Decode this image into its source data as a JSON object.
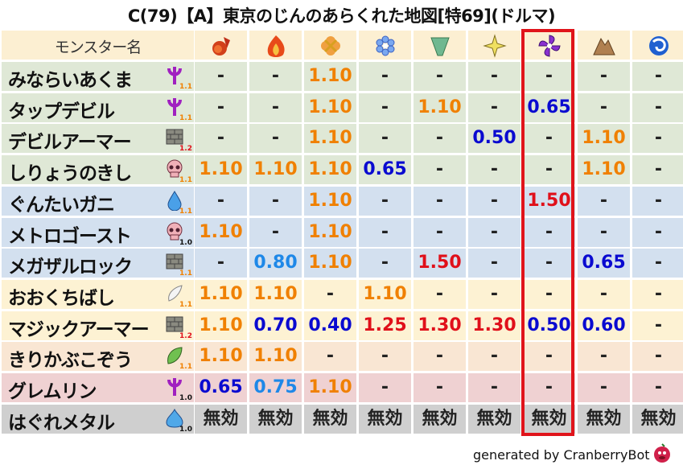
{
  "title": "C(79)【A】東京のじんのあらくれた地図[特69](ドルマ)",
  "header": {
    "name_label": "モンスター名",
    "elements": [
      "fire-ball-icon",
      "flame-icon",
      "explosion-icon",
      "ice-icon",
      "wind-icon",
      "light-icon",
      "dark-icon",
      "earth-icon",
      "water-icon"
    ],
    "highlighted_column": 6
  },
  "colors": {
    "weak": "#f08000",
    "strong_weak": "#e0101a",
    "resist": "#0a0ad0",
    "light_resist": "#1e88e8",
    "neutral": "#222222",
    "highlight": "#e0141b"
  },
  "rows": [
    {
      "name": "みならいあくま",
      "icon": "devil-trident-icon",
      "level": "1.1",
      "bg": "#dfe8d6",
      "values": [
        "-",
        "-",
        "1.10",
        "-",
        "-",
        "-",
        "-",
        "-",
        "-"
      ]
    },
    {
      "name": "タップデビル",
      "icon": "devil-trident-icon",
      "level": "1.1",
      "bg": "#dfe8d6",
      "values": [
        "-",
        "-",
        "1.10",
        "-",
        "1.10",
        "-",
        "0.65",
        "-",
        "-"
      ]
    },
    {
      "name": "デビルアーマー",
      "icon": "brick-wall-icon",
      "level": "1.2",
      "bg": "#dfe8d6",
      "values": [
        "-",
        "-",
        "1.10",
        "-",
        "-",
        "0.50",
        "-",
        "1.10",
        "-"
      ]
    },
    {
      "name": "しりょうのきし",
      "icon": "skull-icon",
      "level": "1.1",
      "bg": "#dfe8d6",
      "values": [
        "1.10",
        "1.10",
        "1.10",
        "0.65",
        "-",
        "-",
        "-",
        "1.10",
        "-"
      ]
    },
    {
      "name": "ぐんたいガニ",
      "icon": "water-drop-icon",
      "level": "1.1",
      "bg": "#d3e0ef",
      "values": [
        "-",
        "-",
        "1.10",
        "-",
        "-",
        "-",
        "1.50",
        "-",
        "-"
      ]
    },
    {
      "name": "メトロゴースト",
      "icon": "skull-icon",
      "level": "1.0",
      "bg": "#d3e0ef",
      "values": [
        "1.10",
        "-",
        "1.10",
        "-",
        "-",
        "-",
        "-",
        "-",
        "-"
      ]
    },
    {
      "name": "メガザルロック",
      "icon": "brick-wall-icon",
      "level": "1.1",
      "bg": "#d3e0ef",
      "values": [
        "-",
        "0.80",
        "1.10",
        "-",
        "1.50",
        "-",
        "-",
        "0.65",
        "-"
      ]
    },
    {
      "name": "おおくちばし",
      "icon": "wing-icon",
      "level": "1.1",
      "bg": "#fdf2d3",
      "values": [
        "1.10",
        "1.10",
        "-",
        "1.10",
        "-",
        "-",
        "-",
        "-",
        "-"
      ]
    },
    {
      "name": "マジックアーマー",
      "icon": "brick-wall-icon",
      "level": "1.2",
      "bg": "#fdf2d3",
      "values": [
        "1.10",
        "0.70",
        "0.40",
        "1.25",
        "1.30",
        "1.30",
        "0.50",
        "0.60",
        "-"
      ]
    },
    {
      "name": "きりかぶこぞう",
      "icon": "leaf-icon",
      "level": "1.1",
      "bg": "#f9e6d3",
      "values": [
        "1.10",
        "1.10",
        "-",
        "-",
        "-",
        "-",
        "-",
        "-",
        "-"
      ]
    },
    {
      "name": "グレムリン",
      "icon": "devil-trident-icon",
      "level": "1.0",
      "bg": "#efd1d2",
      "values": [
        "0.65",
        "0.75",
        "1.10",
        "-",
        "-",
        "-",
        "-",
        "-",
        "-"
      ]
    },
    {
      "name": "はぐれメタル",
      "icon": "slime-icon",
      "level": "1.0",
      "bg": "#cfcfcf",
      "values": [
        "無効",
        "無効",
        "無効",
        "無効",
        "無効",
        "無効",
        "無効",
        "無効",
        "無効"
      ]
    }
  ],
  "footer": "generated by CranberryBot"
}
